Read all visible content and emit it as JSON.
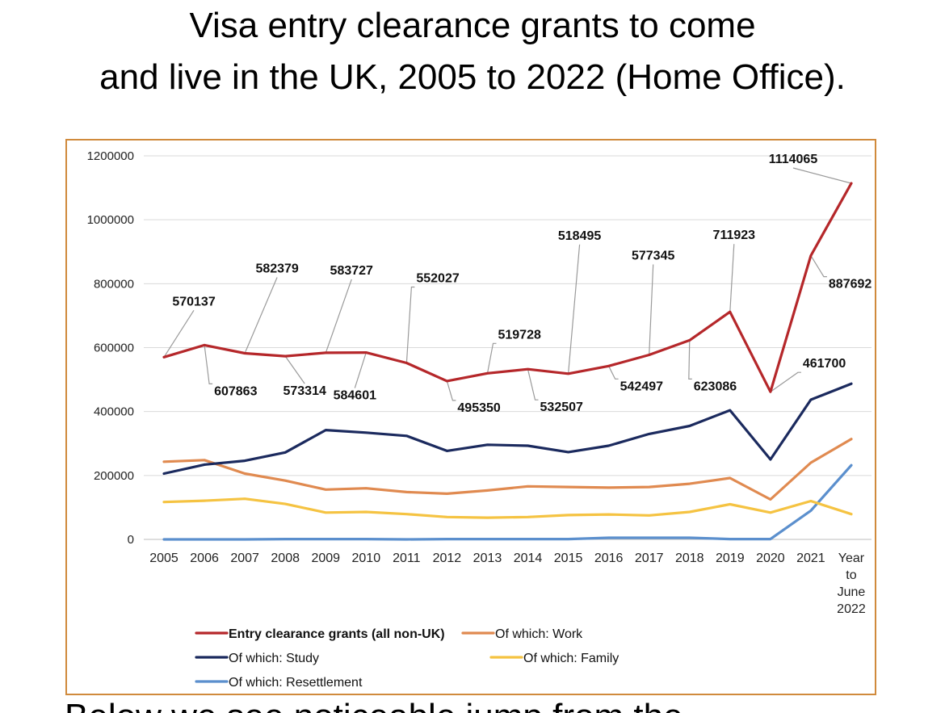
{
  "title": {
    "line1": "Visa entry clearance grants to come",
    "line2": "and live in the UK, 2005 to 2022 (Home Office)."
  },
  "bottom_text": "Below we see noticeable jump from the",
  "chart_data": {
    "type": "line",
    "categories": [
      "2005",
      "2006",
      "2007",
      "2008",
      "2009",
      "2010",
      "2011",
      "2012",
      "2013",
      "2014",
      "2015",
      "2016",
      "2017",
      "2018",
      "2019",
      "2020",
      "2021",
      "Year to June 2022"
    ],
    "category_label_lines": [
      [
        "2005"
      ],
      [
        "2006"
      ],
      [
        "2007"
      ],
      [
        "2008"
      ],
      [
        "2009"
      ],
      [
        "2010"
      ],
      [
        "2011"
      ],
      [
        "2012"
      ],
      [
        "2013"
      ],
      [
        "2014"
      ],
      [
        "2015"
      ],
      [
        "2016"
      ],
      [
        "2017"
      ],
      [
        "2018"
      ],
      [
        "2019"
      ],
      [
        "2020"
      ],
      [
        "2021"
      ],
      [
        "Year",
        "to",
        "June",
        "2022"
      ]
    ],
    "ylim": [
      0,
      1200000
    ],
    "yticks": [
      "1200000",
      "1000000",
      "800000",
      "600000",
      "400000",
      "200000",
      "0"
    ],
    "grid": "horizontal",
    "legend_position": "bottom",
    "series": [
      {
        "name": "Entry clearance grants (all non-UK)",
        "color": "#b5272a",
        "values": [
          570137,
          607863,
          582379,
          573314,
          583727,
          584601,
          552027,
          495350,
          519728,
          532507,
          518495,
          542497,
          577345,
          623086,
          711923,
          461700,
          887692,
          1114065
        ]
      },
      {
        "name": "Of which: Work",
        "color": "#e08a50",
        "values": [
          243000,
          248000,
          206000,
          184000,
          156000,
          160000,
          148000,
          143000,
          153000,
          166000,
          164000,
          162000,
          164000,
          174000,
          192000,
          125000,
          240000,
          314000
        ]
      },
      {
        "name": "Of which: Study",
        "color": "#1b2a5e",
        "values": [
          206000,
          234000,
          246000,
          272000,
          342000,
          334000,
          324000,
          277000,
          296000,
          293000,
          273000,
          293000,
          330000,
          355000,
          404000,
          250000,
          437000,
          487000
        ]
      },
      {
        "name": "Of which: Family",
        "color": "#f5c342",
        "values": [
          117000,
          121000,
          127000,
          111000,
          84000,
          86000,
          79000,
          70000,
          68000,
          70000,
          76000,
          78000,
          75000,
          86000,
          110000,
          84000,
          120000,
          79000
        ]
      },
      {
        "name": "Of which: Resettlement",
        "color": "#5b8fcd",
        "values": [
          0,
          0,
          0,
          1000,
          1000,
          1000,
          0,
          1000,
          1000,
          1000,
          1000,
          5000,
          5000,
          5000,
          1000,
          1000,
          90000,
          232000
        ]
      }
    ],
    "data_labels": [
      "570137",
      "607863",
      "582379",
      "573314",
      "583727",
      "584601",
      "552027",
      "495350",
      "519728",
      "532507",
      "518495",
      "542497",
      "577345",
      "623086",
      "711923",
      "461700",
      "887692",
      "1114065"
    ]
  }
}
